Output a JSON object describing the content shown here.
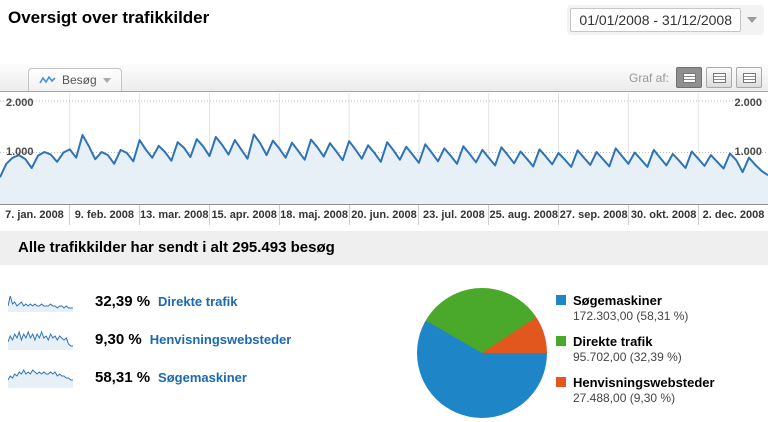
{
  "page": {
    "title": "Oversigt over trafikkilder"
  },
  "date_range": {
    "value": "01/01/2008 - 31/12/2008"
  },
  "chart_module": {
    "metric_tab_label": "Besøg",
    "graph_of_label": "Graf af:",
    "y_axis_ticks": {
      "top": "2.000",
      "mid": "1.000"
    }
  },
  "summary": {
    "header": "Alle trafikkilder har sendt i alt 295.493 besøg",
    "rows": [
      {
        "pct": "32,39 %",
        "label": "Direkte trafik"
      },
      {
        "pct": "9,30 %",
        "label": "Henvisningswebsteder"
      },
      {
        "pct": "58,31 %",
        "label": "Søgemaskiner"
      }
    ],
    "legend": [
      {
        "name": "Søgemaskiner",
        "value": "172.303,00 (58,31 %)",
        "color": "#1e86c7",
        "pct_num": 58.31
      },
      {
        "name": "Direkte trafik",
        "value": "95.702,00 (32,39 %)",
        "color": "#4aa82a",
        "pct_num": 32.39
      },
      {
        "name": "Henvisningswebsteder",
        "value": "27.488,00 (9,30 %)",
        "color": "#e2571d",
        "pct_num": 9.3
      }
    ]
  },
  "colors": {
    "line": "#2e73b8",
    "line_fill": "#e8f0f7",
    "gridline": "#e4e4e4",
    "dotted_line": "#bbbbbb",
    "link_blue": "#1a6ab0"
  },
  "chart_data": [
    {
      "type": "line",
      "title": "Besøg over tid (dagligt)",
      "ylabel": "Besøg",
      "ylim": [
        0,
        2000
      ],
      "y_ticks": [
        1000,
        2000
      ],
      "x_tick_labels": [
        "7. jan. 2008",
        "9. feb. 2008",
        "13. mar. 2008",
        "15. apr. 2008",
        "18. maj. 2008",
        "20. jun. 2008",
        "23. jul. 2008",
        "25. aug. 2008",
        "27. sep. 2008",
        "30. okt. 2008",
        "2. dec. 2008"
      ],
      "values": [
        520,
        780,
        900,
        950,
        870,
        700,
        940,
        1010,
        960,
        820,
        1000,
        1060,
        900,
        1340,
        1120,
        870,
        1010,
        950,
        780,
        1050,
        990,
        830,
        1240,
        1050,
        900,
        1130,
        1010,
        840,
        1200,
        1090,
        910,
        1260,
        1120,
        930,
        1300,
        1150,
        960,
        1240,
        1060,
        880,
        1350,
        1180,
        950,
        1230,
        1080,
        900,
        1190,
        1030,
        860,
        1250,
        1100,
        920,
        1180,
        1020,
        850,
        1220,
        1060,
        880,
        1140,
        990,
        820,
        1200,
        1040,
        860,
        1110,
        960,
        800,
        1160,
        1000,
        830,
        1080,
        940,
        780,
        1120,
        970,
        810,
        1050,
        900,
        750,
        1100,
        950,
        790,
        1020,
        880,
        730,
        1060,
        920,
        770,
        990,
        860,
        720,
        1040,
        900,
        760,
        1010,
        870,
        730,
        1080,
        930,
        780,
        1000,
        860,
        720,
        1050,
        900,
        750,
        970,
        840,
        700,
        1020,
        880,
        740,
        950,
        820,
        690,
        980,
        850,
        620,
        900,
        760,
        640,
        560
      ]
    },
    {
      "type": "pie",
      "labels": [
        "Søgemaskiner",
        "Direkte trafik",
        "Henvisningswebsteder"
      ],
      "values": [
        172303,
        95702,
        27488
      ],
      "percentages": [
        58.31,
        32.39,
        9.3
      ],
      "colors": [
        "#1e86c7",
        "#4aa82a",
        "#e2571d"
      ],
      "total": 295493
    },
    {
      "type": "line",
      "name": "sparkline-direkte-trafik",
      "values": [
        3,
        8,
        4,
        5,
        3,
        4,
        5,
        3,
        4,
        3,
        4,
        3,
        4,
        3,
        3,
        4,
        3,
        3,
        3,
        4,
        3,
        3,
        2,
        3,
        3,
        2,
        3,
        2,
        2,
        2
      ]
    },
    {
      "type": "line",
      "name": "sparkline-henvisningswebsteder",
      "values": [
        4,
        7,
        5,
        8,
        6,
        9,
        5,
        8,
        6,
        9,
        6,
        8,
        5,
        8,
        6,
        9,
        6,
        7,
        5,
        8,
        6,
        7,
        5,
        7,
        6,
        5,
        6,
        3,
        2,
        2
      ]
    },
    {
      "type": "line",
      "name": "sparkline-sogemaskiner",
      "values": [
        4,
        6,
        5,
        7,
        6,
        8,
        7,
        9,
        7,
        8,
        7,
        9,
        8,
        7,
        8,
        7,
        8,
        7,
        7,
        8,
        7,
        8,
        6,
        7,
        6,
        6,
        5,
        5,
        4,
        4
      ]
    }
  ]
}
